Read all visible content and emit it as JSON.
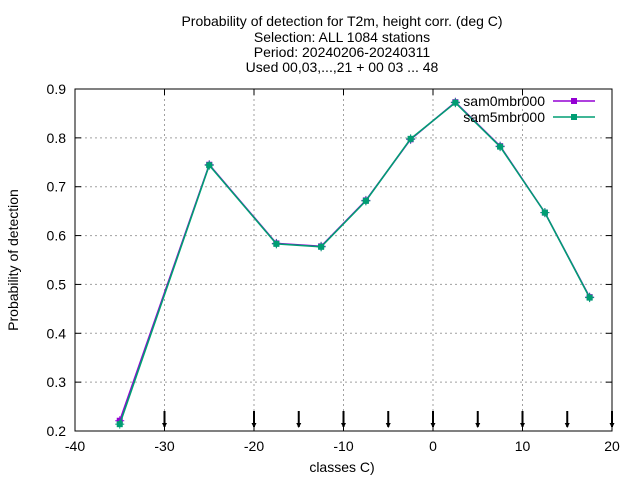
{
  "chart_data": {
    "type": "line",
    "title_lines": [
      "Probability of detection  for T2m, height corr. (deg C)",
      "Selection: ALL   1084 stations",
      "Period: 20240206-20240311",
      "Used 00,03,...,21 + 00 03 ... 48"
    ],
    "xlabel": "classes C)",
    "ylabel": "Probability of detection",
    "xlim": [
      -40,
      20
    ],
    "ylim": [
      0.2,
      0.9
    ],
    "x_ticks": [
      -40,
      -30,
      -20,
      -10,
      0,
      10,
      20
    ],
    "y_ticks": [
      0.2,
      0.3,
      0.4,
      0.5,
      0.6,
      0.7,
      0.8,
      0.9
    ],
    "x_tick_labels": [
      "-40",
      "-30",
      "-20",
      "-10",
      "0",
      "10",
      "20"
    ],
    "y_tick_labels": [
      "0.2",
      "0.3",
      "0.4",
      "0.5",
      "0.6",
      "0.7",
      "0.8",
      "0.9"
    ],
    "grid": true,
    "legend_position": "top-right",
    "class_markers": [
      -30,
      -20,
      -15,
      -10,
      -5,
      0,
      5,
      10,
      15,
      20
    ],
    "series": [
      {
        "name": "sam0mbr000",
        "color": "#9400d3",
        "x": [
          -35,
          -25,
          -17.5,
          -12.5,
          -7.5,
          -2.5,
          2.5,
          7.5,
          12.5,
          17.5
        ],
        "values": [
          0.221,
          0.745,
          0.584,
          0.578,
          0.672,
          0.797,
          0.873,
          0.783,
          0.647,
          0.474
        ]
      },
      {
        "name": "sam5mbr000",
        "color": "#009e73",
        "x": [
          -35,
          -25,
          -17.5,
          -12.5,
          -7.5,
          -2.5,
          2.5,
          7.5,
          12.5,
          17.5
        ],
        "values": [
          0.214,
          0.744,
          0.583,
          0.577,
          0.671,
          0.798,
          0.872,
          0.782,
          0.647,
          0.473
        ]
      }
    ]
  }
}
